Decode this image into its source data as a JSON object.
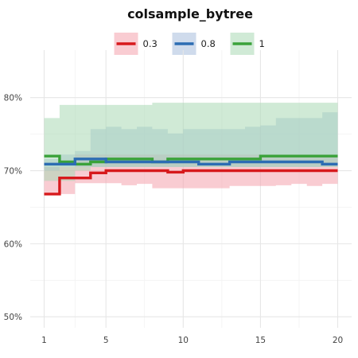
{
  "chart_data": {
    "type": "line",
    "title": "colsample_bytree",
    "xlabel": "",
    "ylabel": "",
    "x": [
      1,
      2,
      3,
      4,
      5,
      6,
      7,
      8,
      9,
      10,
      11,
      12,
      13,
      14,
      15,
      16,
      17,
      18,
      19,
      20
    ],
    "xticks": [
      1,
      5,
      10,
      15,
      20
    ],
    "xlim": [
      0.1,
      20.9
    ],
    "yticks": [
      0.5,
      0.6,
      0.7,
      0.8
    ],
    "ytick_labels": [
      "50%",
      "60%",
      "70%",
      "80%"
    ],
    "ylim": [
      0.485,
      0.865
    ],
    "grid": true,
    "legend_position": "top",
    "series": [
      {
        "name": "0.3",
        "color": "#d7191c",
        "band_color": "#f4a3ad",
        "band_opacity": 0.55,
        "values": [
          0.668,
          0.69,
          0.69,
          0.697,
          0.7,
          0.7,
          0.7,
          0.7,
          0.698,
          0.7,
          0.7,
          0.7,
          0.7,
          0.7,
          0.7,
          0.7,
          0.7,
          0.7,
          0.7,
          0.7
        ],
        "lower": [
          0.668,
          0.668,
          0.683,
          0.683,
          0.683,
          0.68,
          0.682,
          0.676,
          0.676,
          0.676,
          0.676,
          0.676,
          0.679,
          0.679,
          0.679,
          0.68,
          0.682,
          0.679,
          0.682,
          0.682
        ],
        "upper": [
          0.705,
          0.705,
          0.722,
          0.722,
          0.722,
          0.722,
          0.722,
          0.722,
          0.722,
          0.722,
          0.722,
          0.722,
          0.722,
          0.722,
          0.722,
          0.722,
          0.722,
          0.722,
          0.722,
          0.722
        ]
      },
      {
        "name": "0.8",
        "color": "#2c6db3",
        "band_color": "#9fb8d9",
        "band_opacity": 0.5,
        "values": [
          0.709,
          0.709,
          0.716,
          0.716,
          0.712,
          0.712,
          0.712,
          0.712,
          0.712,
          0.712,
          0.709,
          0.709,
          0.712,
          0.712,
          0.712,
          0.712,
          0.712,
          0.712,
          0.709,
          0.709
        ],
        "lower": [
          0.7,
          0.705,
          0.705,
          0.705,
          0.705,
          0.705,
          0.705,
          0.705,
          0.705,
          0.705,
          0.705,
          0.705,
          0.705,
          0.705,
          0.705,
          0.705,
          0.705,
          0.705,
          0.705,
          0.705
        ],
        "upper": [
          0.716,
          0.722,
          0.727,
          0.757,
          0.76,
          0.757,
          0.76,
          0.757,
          0.751,
          0.757,
          0.757,
          0.757,
          0.757,
          0.76,
          0.762,
          0.772,
          0.772,
          0.772,
          0.78,
          0.78
        ]
      },
      {
        "name": "1",
        "color": "#3aa23a",
        "band_color": "#a9d8b4",
        "band_opacity": 0.55,
        "values": [
          0.72,
          0.712,
          0.709,
          0.712,
          0.716,
          0.716,
          0.716,
          0.712,
          0.716,
          0.716,
          0.716,
          0.716,
          0.716,
          0.716,
          0.72,
          0.72,
          0.72,
          0.72,
          0.72,
          0.72
        ],
        "lower": [
          0.686,
          0.686,
          0.7,
          0.705,
          0.705,
          0.705,
          0.705,
          0.705,
          0.705,
          0.705,
          0.705,
          0.705,
          0.705,
          0.705,
          0.705,
          0.705,
          0.705,
          0.705,
          0.705,
          0.705
        ],
        "upper": [
          0.772,
          0.79,
          0.79,
          0.79,
          0.79,
          0.79,
          0.79,
          0.793,
          0.793,
          0.793,
          0.793,
          0.793,
          0.793,
          0.793,
          0.793,
          0.793,
          0.793,
          0.793,
          0.793,
          0.793
        ]
      }
    ]
  }
}
